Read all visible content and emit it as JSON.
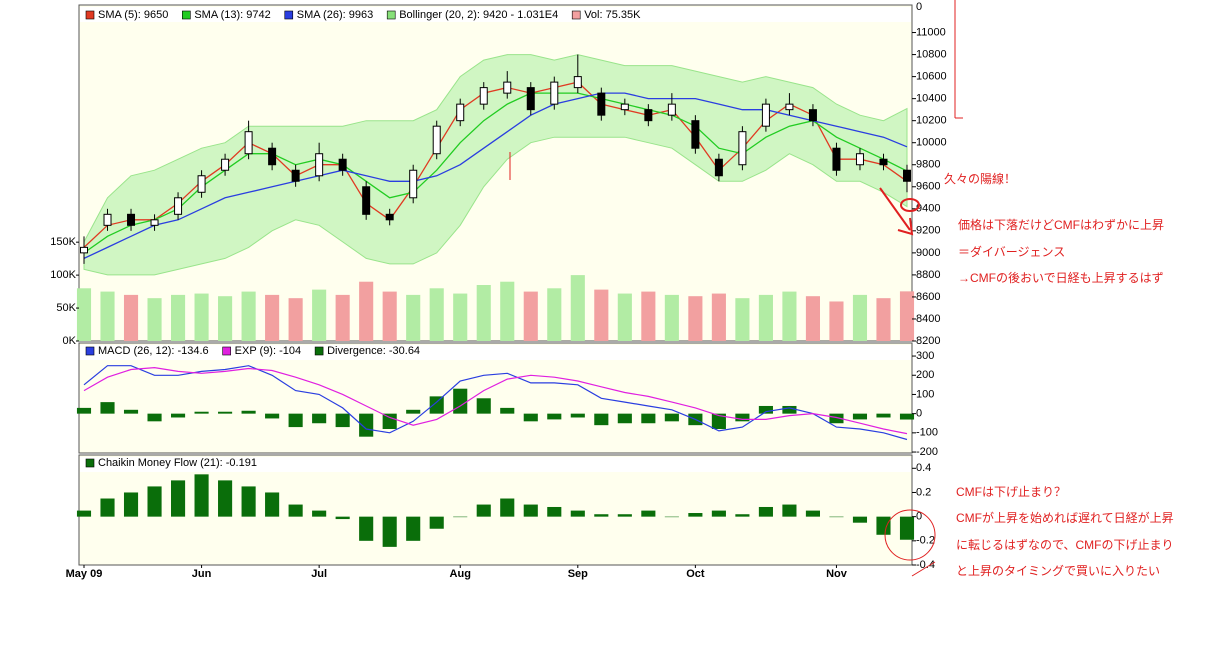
{
  "chart_data": [
    {
      "type": "candlestick",
      "open": [
        9000,
        9250,
        9350,
        9250,
        9350,
        9550,
        9750,
        9900,
        9950,
        9750,
        9700,
        9850,
        9600,
        9350,
        9500,
        9900,
        10200,
        10350,
        10450,
        10500,
        10350,
        10500,
        10450,
        10300,
        10300,
        10250,
        10200,
        9850,
        9800,
        10150,
        10300,
        10300,
        9950,
        9800,
        9850,
        9750
      ],
      "high": [
        9150,
        9400,
        9400,
        9350,
        9550,
        9750,
        9900,
        10200,
        10000,
        9800,
        10000,
        9900,
        9650,
        9400,
        9800,
        10200,
        10400,
        10550,
        10650,
        10550,
        10600,
        10800,
        10500,
        10400,
        10350,
        10450,
        10250,
        9900,
        10150,
        10400,
        10450,
        10350,
        10000,
        9950,
        9900,
        9800
      ],
      "low": [
        8900,
        9200,
        9200,
        9200,
        9300,
        9500,
        9700,
        9850,
        9750,
        9600,
        9650,
        9700,
        9300,
        9250,
        9450,
        9850,
        10150,
        10300,
        10400,
        10250,
        10300,
        10450,
        10200,
        10250,
        10150,
        10200,
        9900,
        9650,
        9750,
        10100,
        10250,
        10150,
        9700,
        9750,
        9750,
        9550
      ],
      "close": [
        9050,
        9350,
        9250,
        9300,
        9500,
        9700,
        9850,
        10100,
        9800,
        9650,
        9900,
        9750,
        9350,
        9300,
        9750,
        10150,
        10350,
        10500,
        10550,
        10300,
        10550,
        10600,
        10250,
        10350,
        10200,
        10350,
        9950,
        9700,
        10100,
        10350,
        10350,
        10200,
        9750,
        9900,
        9800,
        9650
      ],
      "series": [
        {
          "name": "SMA (5): 9650",
          "color": "#e03a22",
          "values": [
            9050,
            9250,
            9300,
            9300,
            9450,
            9650,
            9800,
            10000,
            9900,
            9700,
            9800,
            9800,
            9450,
            9300,
            9600,
            9950,
            10300,
            10450,
            10500,
            10450,
            10500,
            10550,
            10350,
            10300,
            10250,
            10300,
            10050,
            9750,
            9950,
            10200,
            10350,
            10250,
            9850,
            9850,
            9800,
            9650
          ]
        },
        {
          "name": "SMA (13): 9742",
          "color": "#22cc22",
          "values": [
            9000,
            9150,
            9250,
            9300,
            9400,
            9600,
            9750,
            9900,
            9900,
            9800,
            9850,
            9800,
            9650,
            9500,
            9550,
            9750,
            10000,
            10200,
            10350,
            10450,
            10450,
            10450,
            10400,
            10350,
            10300,
            10250,
            10150,
            9950,
            9900,
            10050,
            10150,
            10200,
            10050,
            9950,
            9850,
            9742
          ]
        },
        {
          "name": "SMA (26): 9963",
          "color": "#2a3ee0",
          "values": [
            8950,
            9050,
            9150,
            9250,
            9300,
            9400,
            9500,
            9550,
            9600,
            9650,
            9700,
            9750,
            9700,
            9650,
            9650,
            9700,
            9800,
            9950,
            10100,
            10250,
            10350,
            10400,
            10450,
            10450,
            10400,
            10400,
            10400,
            10350,
            10300,
            10300,
            10250,
            10200,
            10150,
            10100,
            10050,
            9963
          ]
        }
      ],
      "band": {
        "name": "Bollinger (20, 2): 9420 - 1.031E4",
        "color": "#c8f5bc",
        "edge_color": "#88e07a",
        "upper": [
          9100,
          9500,
          9700,
          9750,
          9850,
          9950,
          10000,
          10150,
          10150,
          10150,
          10150,
          10150,
          10200,
          10200,
          10200,
          10300,
          10600,
          10750,
          10800,
          10800,
          10750,
          10800,
          10750,
          10700,
          10700,
          10700,
          10650,
          10600,
          10550,
          10600,
          10550,
          10500,
          10350,
          10250,
          10200,
          10310
        ],
        "lower": [
          8850,
          8800,
          8800,
          8800,
          8850,
          8900,
          8950,
          9050,
          9200,
          9300,
          9250,
          9100,
          8950,
          8900,
          8900,
          9000,
          9250,
          9600,
          9850,
          10000,
          10050,
          10050,
          10050,
          10050,
          10000,
          9950,
          9800,
          9650,
          9650,
          9750,
          9900,
          9800,
          9650,
          9650,
          9550,
          9420
        ]
      },
      "volume": {
        "name": "Vol: 75.35K",
        "color": "#f2a0a0",
        "up_color": "#b2eca4",
        "values": [
          80000,
          75000,
          70000,
          65000,
          70000,
          72000,
          68000,
          75000,
          70000,
          65000,
          78000,
          70000,
          90000,
          75000,
          70000,
          80000,
          72000,
          85000,
          90000,
          75000,
          80000,
          100000,
          78000,
          72000,
          75000,
          70000,
          68000,
          72000,
          65000,
          70000,
          75000,
          68000,
          60000,
          70000,
          65000,
          75350
        ],
        "ylim": [
          0,
          510000
        ],
        "yticks": [
          {
            "value": 0,
            "label": "0K"
          },
          {
            "value": 50000,
            "label": "50K"
          },
          {
            "value": 100000,
            "label": "100K"
          },
          {
            "value": 150000,
            "label": "150K"
          }
        ]
      },
      "top_label": "0",
      "ylim": [
        8200,
        11250
      ],
      "yticks": [
        8200,
        8400,
        8600,
        8800,
        9000,
        9200,
        9400,
        9600,
        9800,
        10000,
        10200,
        10400,
        10600,
        10800,
        11000
      ],
      "grid": false
    },
    {
      "type": "macd",
      "series": [
        {
          "name": "MACD (26, 12): -134.6",
          "color": "#2a3ee0",
          "kind": "line",
          "values": [
            150,
            250,
            250,
            200,
            200,
            220,
            230,
            250,
            200,
            120,
            100,
            30,
            -80,
            -100,
            -40,
            60,
            170,
            200,
            210,
            160,
            160,
            150,
            80,
            60,
            40,
            20,
            -30,
            -90,
            -70,
            10,
            30,
            0,
            -70,
            -80,
            -100,
            -134.6
          ]
        },
        {
          "name": "EXP (9): -104",
          "color": "#e020e0",
          "kind": "line",
          "values": [
            120,
            190,
            230,
            240,
            220,
            210,
            220,
            235,
            225,
            190,
            150,
            100,
            40,
            -20,
            -60,
            -30,
            40,
            120,
            180,
            200,
            190,
            170,
            140,
            110,
            90,
            60,
            30,
            -10,
            -30,
            -30,
            -10,
            0,
            -20,
            -50,
            -80,
            -104
          ]
        },
        {
          "name": "Divergence: -30.64",
          "color": "#0a6e0a",
          "kind": "bar",
          "values": [
            30,
            60,
            20,
            -40,
            -20,
            10,
            10,
            15,
            -25,
            -70,
            -50,
            -70,
            -120,
            -80,
            20,
            90,
            130,
            80,
            30,
            -40,
            -30,
            -20,
            -60,
            -50,
            -50,
            -40,
            -60,
            -80,
            -40,
            40,
            40,
            0,
            -50,
            -30,
            -20,
            -30.64
          ]
        }
      ],
      "ylim": [
        -205,
        368
      ],
      "yticks": [
        -200,
        -100,
        0,
        100,
        200,
        300
      ],
      "grid": false
    },
    {
      "type": "bar",
      "categories": [
        "May 09",
        null,
        null,
        null,
        null,
        "Jun",
        null,
        null,
        null,
        null,
        "Jul",
        null,
        null,
        null,
        null,
        null,
        "Aug",
        null,
        null,
        null,
        null,
        "Sep",
        null,
        null,
        null,
        null,
        "Oct",
        null,
        null,
        null,
        null,
        null,
        "Nov",
        null,
        null,
        null
      ],
      "series": [
        {
          "name": "Chaikin Money Flow (21): -0.191",
          "color": "#0a6e0a",
          "values": [
            0.05,
            0.15,
            0.2,
            0.25,
            0.3,
            0.35,
            0.3,
            0.25,
            0.2,
            0.1,
            0.05,
            -0.02,
            -0.2,
            -0.25,
            -0.2,
            -0.1,
            0,
            0.1,
            0.15,
            0.1,
            0.08,
            0.05,
            0.02,
            0.02,
            0.05,
            0,
            0.03,
            0.05,
            0.02,
            0.08,
            0.1,
            0.05,
            0,
            -0.05,
            -0.15,
            -0.191
          ]
        }
      ],
      "ylim": [
        -0.4,
        0.51
      ],
      "yticks": [
        -0.4,
        -0.2,
        0,
        0.2,
        0.4
      ],
      "grid": false
    }
  ],
  "annotations": [
    "久々の陽線！",
    "価格は下落だけどCMFはわずかに上昇",
    "＝ダイバージェンス",
    "→CMFの後おいで日経も上昇するはず",
    "CMFは下げ止まり？",
    "CMFが上昇を始めれば遅れて日経が上昇",
    "に転じるはずなので、CMFの下げ止まり",
    "と上昇のタイミングで買いに入りたい"
  ]
}
